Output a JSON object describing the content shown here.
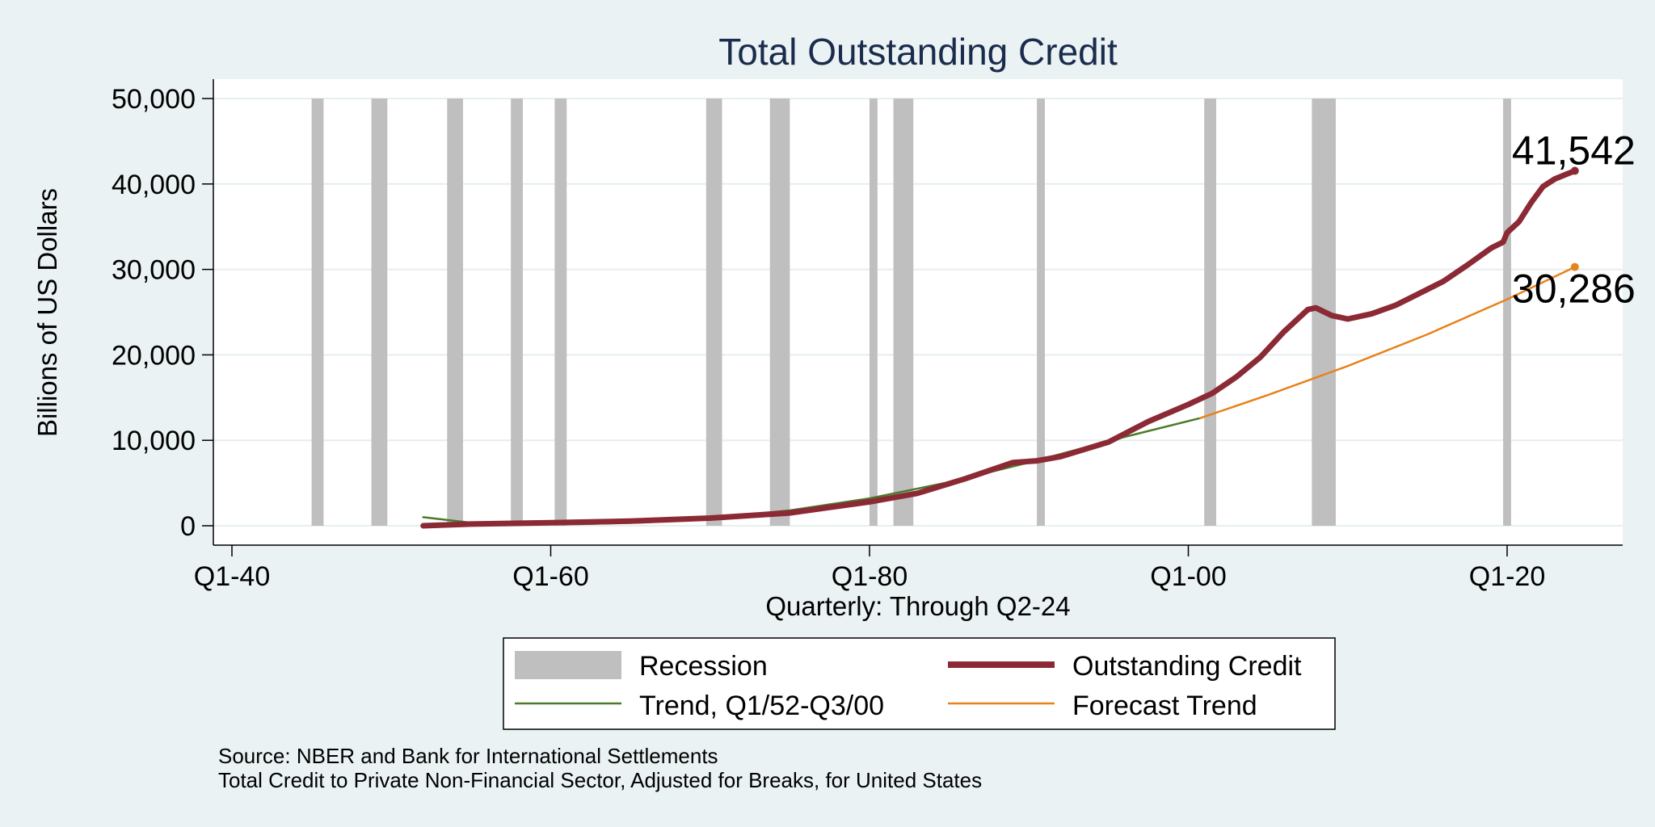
{
  "chart_data": {
    "type": "line",
    "title": "Total Outstanding Credit",
    "xlabel": "Quarterly: Through Q2-24",
    "ylabel": "Billions of US Dollars",
    "x_range": [
      1940,
      2024.5
    ],
    "y_range": [
      0,
      50000
    ],
    "x_ticks": [
      {
        "label": "Q1-40",
        "year": 1940
      },
      {
        "label": "Q1-60",
        "year": 1960
      },
      {
        "label": "Q1-80",
        "year": 1980
      },
      {
        "label": "Q1-00",
        "year": 2000
      },
      {
        "label": "Q1-20",
        "year": 2020
      }
    ],
    "y_ticks": [
      {
        "label": "0",
        "value": 0
      },
      {
        "label": "10,000",
        "value": 10000
      },
      {
        "label": "20,000",
        "value": 20000
      },
      {
        "label": "30,000",
        "value": 30000
      },
      {
        "label": "40,000",
        "value": 40000
      },
      {
        "label": "50,000",
        "value": 50000
      }
    ],
    "grid": true,
    "recessions": [
      [
        1945.0,
        1945.75
      ],
      [
        1948.75,
        1949.75
      ],
      [
        1953.5,
        1954.5
      ],
      [
        1957.5,
        1958.25
      ],
      [
        1960.25,
        1961.0
      ],
      [
        1969.75,
        1970.75
      ],
      [
        1973.75,
        1975.0
      ],
      [
        1980.0,
        1980.5
      ],
      [
        1981.5,
        1982.75
      ],
      [
        1990.5,
        1991.0
      ],
      [
        2001.0,
        2001.75
      ],
      [
        2007.75,
        2009.25
      ],
      [
        2019.75,
        2020.25
      ]
    ],
    "series": [
      {
        "name": "Outstanding Credit",
        "color": "#8b2a35",
        "points": [
          [
            1952.0,
            0
          ],
          [
            1955.0,
            200
          ],
          [
            1960.0,
            350
          ],
          [
            1965.0,
            550
          ],
          [
            1970.0,
            900
          ],
          [
            1975.0,
            1500
          ],
          [
            1980.0,
            2800
          ],
          [
            1983.0,
            3800
          ],
          [
            1986.0,
            5500
          ],
          [
            1989.0,
            7400
          ],
          [
            1990.5,
            7600
          ],
          [
            1992.0,
            8100
          ],
          [
            1995.0,
            9800
          ],
          [
            1997.5,
            12200
          ],
          [
            2000.0,
            14200
          ],
          [
            2001.5,
            15500
          ],
          [
            2003.0,
            17400
          ],
          [
            2004.5,
            19700
          ],
          [
            2006.0,
            22700
          ],
          [
            2007.5,
            25300
          ],
          [
            2008.0,
            25500
          ],
          [
            2009.0,
            24600
          ],
          [
            2010.0,
            24200
          ],
          [
            2011.5,
            24800
          ],
          [
            2013.0,
            25800
          ],
          [
            2014.5,
            27200
          ],
          [
            2016.0,
            28600
          ],
          [
            2017.5,
            30500
          ],
          [
            2019.0,
            32500
          ],
          [
            2019.75,
            33200
          ],
          [
            2020.0,
            34300
          ],
          [
            2020.75,
            35600
          ],
          [
            2021.5,
            37800
          ],
          [
            2022.25,
            39700
          ],
          [
            2023.0,
            40600
          ],
          [
            2024.25,
            41542
          ]
        ]
      },
      {
        "name": "Trend, Q1/52-Q3/00",
        "color": "#4a7a2a",
        "points": [
          [
            1952.0,
            1000
          ],
          [
            1955.0,
            350
          ],
          [
            1958.0,
            150
          ],
          [
            1962.0,
            200
          ],
          [
            1966.0,
            400
          ],
          [
            1970.0,
            900
          ],
          [
            1975.0,
            1800
          ],
          [
            1980.0,
            3200
          ],
          [
            1985.0,
            5100
          ],
          [
            1990.0,
            7400
          ],
          [
            1993.0,
            8900
          ],
          [
            1996.0,
            10400
          ],
          [
            2000.75,
            12600
          ]
        ]
      },
      {
        "name": "Forecast Trend",
        "color": "#e8821a",
        "points": [
          [
            2000.75,
            12600
          ],
          [
            2005.0,
            15300
          ],
          [
            2010.0,
            18700
          ],
          [
            2015.0,
            22400
          ],
          [
            2020.0,
            26500
          ],
          [
            2024.25,
            30286
          ]
        ]
      }
    ],
    "end_labels": [
      {
        "series": "Outstanding Credit",
        "text": "41,542",
        "value": 41542
      },
      {
        "series": "Forecast Trend",
        "text": "30,286",
        "value": 30286
      }
    ],
    "legend": {
      "placement": "bottom",
      "entries": [
        {
          "label": "Recession",
          "kind": "box",
          "color": "#bfbfbf"
        },
        {
          "label": "Outstanding Credit",
          "kind": "line",
          "color": "#8b2a35"
        },
        {
          "label": "Trend, Q1/52-Q3/00",
          "kind": "line",
          "color": "#4a7a2a"
        },
        {
          "label": "Forecast Trend",
          "kind": "line",
          "color": "#e8821a"
        }
      ]
    },
    "notes": [
      "Source: NBER and Bank for International Settlements",
      "Total Credit to Private Non-Financial Sector, Adjusted for Breaks, for United States"
    ]
  }
}
